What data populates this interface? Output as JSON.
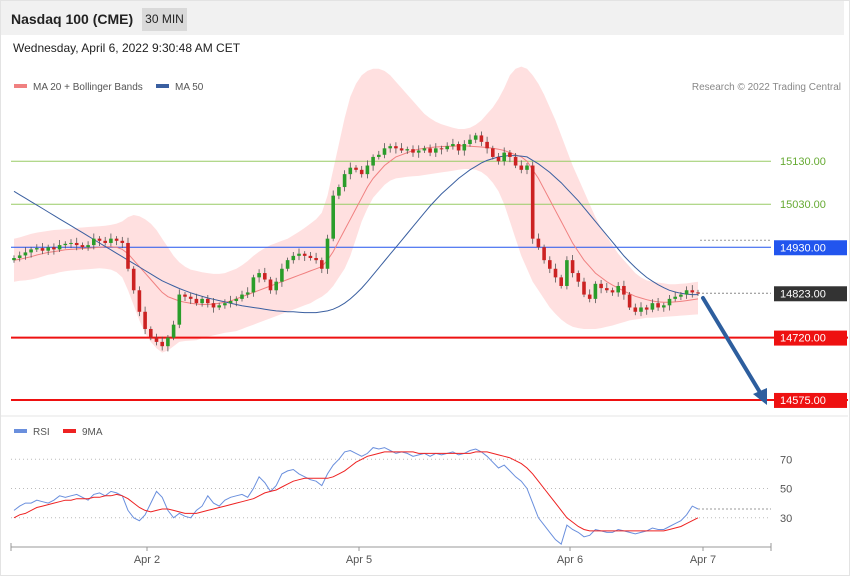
{
  "header": {
    "title": "Nasdaq 100 (CME)",
    "timeframe": "30 MIN",
    "timestamp": "Wednesday, April 6, 2022 9:30:48 AM CET"
  },
  "legend": {
    "ma20_label": "MA 20 + Bollinger Bands",
    "ma50_label": "MA 50",
    "credit": "Research © 2022 Trading Central",
    "rsi_label": "RSI",
    "rsi_ma_label": "9MA"
  },
  "colors": {
    "ma20": "#f08080",
    "band_fill": "#ffdada",
    "ma50": "#3a5fa0",
    "resistance": "#99cc66",
    "pivot": "#2255ee",
    "support": "#ee1111",
    "last_price_bg": "#333333",
    "arrow": "#2d5e9e",
    "candle_up": "#2a9d2a",
    "candle_down": "#cc2222",
    "rsi_line": "#6a8fdd",
    "rsi_ma": "#ee2222"
  },
  "chart_data": [
    {
      "type": "candlestick",
      "name": "price",
      "xlabels": [
        "Apr 2",
        "Apr 5",
        "Apr 6",
        "Apr 7"
      ],
      "ylim": [
        14540,
        15370
      ],
      "levels": [
        {
          "label": "15130.00",
          "value": 15130,
          "kind": "resistance"
        },
        {
          "label": "15030.00",
          "value": 15030,
          "kind": "resistance"
        },
        {
          "label": "14930.00",
          "value": 14930,
          "kind": "pivot"
        },
        {
          "label": "14823.00",
          "value": 14823,
          "kind": "last"
        },
        {
          "label": "14720.00",
          "value": 14720,
          "kind": "support"
        },
        {
          "label": "14575.00",
          "value": 14575,
          "kind": "support"
        }
      ],
      "close": [
        14905,
        14911,
        14918,
        14925,
        14928,
        14922,
        14930,
        14925,
        14935,
        14938,
        14940,
        14935,
        14930,
        14935,
        14950,
        14945,
        14940,
        14950,
        14945,
        14940,
        14880,
        14830,
        14780,
        14740,
        14720,
        14710,
        14700,
        14720,
        14750,
        14820,
        14815,
        14810,
        14800,
        14810,
        14800,
        14790,
        14795,
        14800,
        14805,
        14810,
        14820,
        14825,
        14860,
        14870,
        14855,
        14830,
        14850,
        14880,
        14900,
        14910,
        14915,
        14910,
        14905,
        14900,
        14880,
        14950,
        15050,
        15070,
        15100,
        15115,
        15110,
        15100,
        15120,
        15140,
        15145,
        15160,
        15165,
        15160,
        15155,
        15158,
        15150,
        15155,
        15160,
        15150,
        15160,
        15158,
        15165,
        15170,
        15155,
        15170,
        15180,
        15190,
        15175,
        15160,
        15140,
        15130,
        15150,
        15140,
        15120,
        15110,
        15120,
        14950,
        14930,
        14900,
        14880,
        14860,
        14840,
        14900,
        14870,
        14850,
        14820,
        14810,
        14845,
        14835,
        14830,
        14825,
        14840,
        14820,
        14790,
        14780,
        14790,
        14785,
        14800,
        14790,
        14795,
        14810,
        14815,
        14820,
        14830,
        14825,
        14823
      ],
      "ma20": [
        14900,
        14902,
        14905,
        14908,
        14912,
        14915,
        14918,
        14920,
        14922,
        14924,
        14925,
        14926,
        14927,
        14928,
        14929,
        14930,
        14931,
        14931,
        14930,
        14925,
        14915,
        14900,
        14885,
        14870,
        14855,
        14840,
        14825,
        14815,
        14810,
        14805,
        14802,
        14800,
        14798,
        14797,
        14797,
        14798,
        14800,
        14802,
        14805,
        14810,
        14815,
        14820,
        14825,
        14830,
        14835,
        14840,
        14845,
        14850,
        14855,
        14860,
        14865,
        14870,
        14875,
        14880,
        14885,
        14900,
        14920,
        14945,
        14970,
        14995,
        15020,
        15045,
        15070,
        15090,
        15105,
        15120,
        15130,
        15140,
        15145,
        15150,
        15155,
        15158,
        15160,
        15162,
        15163,
        15164,
        15165,
        15165,
        15166,
        15166,
        15165,
        15164,
        15163,
        15162,
        15160,
        15158,
        15155,
        15150,
        15145,
        15140,
        15130,
        15110,
        15090,
        15065,
        15040,
        15015,
        14990,
        14965,
        14940,
        14920,
        14900,
        14885,
        14870,
        14860,
        14850,
        14842,
        14835,
        14828,
        14822,
        14816,
        14812,
        14808,
        14805,
        14803,
        14802,
        14802,
        14803,
        14804,
        14806,
        14808,
        14810
      ],
      "bb_upper": [
        14950,
        14953,
        14957,
        14961,
        14964,
        14966,
        14968,
        14970,
        14971,
        14972,
        14973,
        14975,
        14976,
        14977,
        14978,
        14979,
        14980,
        14982,
        14985,
        14990,
        15000,
        15005,
        15002,
        14995,
        14985,
        14970,
        14950,
        14930,
        14910,
        14895,
        14885,
        14878,
        14875,
        14872,
        14870,
        14868,
        14868,
        14870,
        14875,
        14880,
        14888,
        14898,
        14910,
        14920,
        14928,
        14935,
        14940,
        14945,
        14950,
        14958,
        14966,
        14975,
        14985,
        14995,
        15010,
        15050,
        15110,
        15170,
        15230,
        15280,
        15310,
        15330,
        15340,
        15345,
        15345,
        15340,
        15330,
        15315,
        15300,
        15285,
        15270,
        15255,
        15240,
        15230,
        15222,
        15216,
        15212,
        15208,
        15205,
        15205,
        15208,
        15215,
        15225,
        15240,
        15255,
        15275,
        15300,
        15330,
        15345,
        15350,
        15345,
        15330,
        15310,
        15285,
        15255,
        15225,
        15190,
        15155,
        15120,
        15090,
        15060,
        15030,
        15000,
        14975,
        14955,
        14935,
        14915,
        14900,
        14885,
        14870,
        14860,
        14853,
        14850,
        14848,
        14846,
        14844,
        14844,
        14845,
        14846,
        14848,
        14850
      ],
      "bb_lower": [
        14850,
        14852,
        14853,
        14855,
        14858,
        14862,
        14866,
        14868,
        14872,
        14874,
        14876,
        14877,
        14878,
        14879,
        14880,
        14881,
        14880,
        14878,
        14872,
        14860,
        14830,
        14795,
        14760,
        14730,
        14710,
        14695,
        14685,
        14690,
        14700,
        14710,
        14712,
        14713,
        14714,
        14718,
        14722,
        14725,
        14728,
        14731,
        14733,
        14735,
        14740,
        14745,
        14750,
        14755,
        14760,
        14765,
        14770,
        14775,
        14780,
        14785,
        14790,
        14795,
        14800,
        14808,
        14815,
        14825,
        14840,
        14860,
        14880,
        14910,
        14950,
        14990,
        15020,
        15045,
        15060,
        15075,
        15085,
        15090,
        15092,
        15094,
        15095,
        15096,
        15098,
        15100,
        15102,
        15104,
        15106,
        15108,
        15110,
        15112,
        15112,
        15110,
        15105,
        15095,
        15080,
        15060,
        15030,
        14990,
        14950,
        14910,
        14880,
        14850,
        14830,
        14810,
        14790,
        14775,
        14762,
        14752,
        14745,
        14742,
        14740,
        14740,
        14740,
        14742,
        14745,
        14748,
        14752,
        14756,
        14760,
        14762,
        14764,
        14766,
        14766,
        14767,
        14768,
        14769,
        14770,
        14771,
        14772,
        14773,
        14774
      ],
      "ma50": [
        15060,
        15052,
        15044,
        15036,
        15028,
        15020,
        15012,
        15004,
        14996,
        14988,
        14980,
        14972,
        14964,
        14956,
        14948,
        14940,
        14932,
        14924,
        14916,
        14908,
        14900,
        14892,
        14884,
        14876,
        14868,
        14860,
        14852,
        14846,
        14840,
        14834,
        14829,
        14824,
        14820,
        14816,
        14812,
        14809,
        14806,
        14803,
        14800,
        14797,
        14794,
        14792,
        14790,
        14788,
        14786,
        14784,
        14782,
        14781,
        14780,
        14780,
        14779,
        14778,
        14778,
        14778,
        14780,
        14782,
        14786,
        14792,
        14800,
        14810,
        14822,
        14835,
        14850,
        14866,
        14882,
        14898,
        14914,
        14930,
        14946,
        14962,
        14978,
        14994,
        15010,
        15026,
        15040,
        15054,
        15066,
        15078,
        15090,
        15100,
        15110,
        15118,
        15126,
        15132,
        15136,
        15140,
        15142,
        15143,
        15143,
        15142,
        15140,
        15132,
        15124,
        15114,
        15104,
        15092,
        15080,
        15066,
        15052,
        15038,
        15022,
        15006,
        14990,
        14974,
        14958,
        14942,
        14926,
        14910,
        14896,
        14883,
        14871,
        14860,
        14851,
        14843,
        14836,
        14830,
        14826,
        14823,
        14821,
        14820,
        14820
      ]
    },
    {
      "type": "line",
      "name": "rsi",
      "ylim": [
        10,
        90
      ],
      "ticks": [
        70,
        50,
        30
      ],
      "rsi": [
        35,
        38,
        40,
        40,
        42,
        41,
        40,
        42,
        45,
        44,
        45,
        46,
        44,
        42,
        46,
        47,
        45,
        48,
        47,
        45,
        35,
        30,
        28,
        32,
        40,
        48,
        44,
        35,
        30,
        33,
        31,
        30,
        35,
        38,
        45,
        40,
        38,
        42,
        44,
        45,
        46,
        44,
        50,
        58,
        54,
        48,
        52,
        60,
        62,
        63,
        60,
        58,
        56,
        55,
        52,
        60,
        66,
        70,
        75,
        76,
        74,
        72,
        74,
        78,
        77,
        78,
        76,
        74,
        75,
        74,
        72,
        73,
        74,
        72,
        74,
        73,
        74,
        75,
        73,
        74,
        76,
        77,
        75,
        72,
        68,
        64,
        66,
        62,
        58,
        55,
        50,
        40,
        30,
        25,
        20,
        15,
        12,
        25,
        22,
        20,
        17,
        18,
        22,
        21,
        20,
        20,
        22,
        21,
        20,
        19,
        20,
        21,
        23,
        22,
        22,
        24,
        26,
        28,
        32,
        38,
        36
      ],
      "ma9": [
        30,
        32,
        33,
        35,
        37,
        38,
        39,
        40,
        41,
        42,
        42,
        43,
        43,
        43,
        44,
        44,
        45,
        45,
        46,
        45,
        43,
        40,
        37,
        35,
        34,
        35,
        36,
        36,
        35,
        34,
        33,
        33,
        33,
        34,
        35,
        36,
        37,
        38,
        39,
        40,
        41,
        42,
        43,
        45,
        47,
        48,
        49,
        51,
        53,
        55,
        56,
        57,
        57,
        57,
        57,
        57,
        58,
        60,
        62,
        65,
        68,
        70,
        72,
        73,
        74,
        75,
        75,
        75,
        75,
        75,
        75,
        74,
        74,
        74,
        74,
        74,
        74,
        74,
        74,
        74,
        74,
        75,
        75,
        75,
        74,
        73,
        72,
        71,
        69,
        67,
        64,
        60,
        55,
        50,
        45,
        40,
        35,
        30,
        27,
        24,
        22,
        21,
        21,
        21,
        21,
        21,
        21,
        21,
        21,
        21,
        21,
        21,
        21,
        21,
        21,
        22,
        23,
        24,
        26,
        28,
        30
      ]
    }
  ]
}
